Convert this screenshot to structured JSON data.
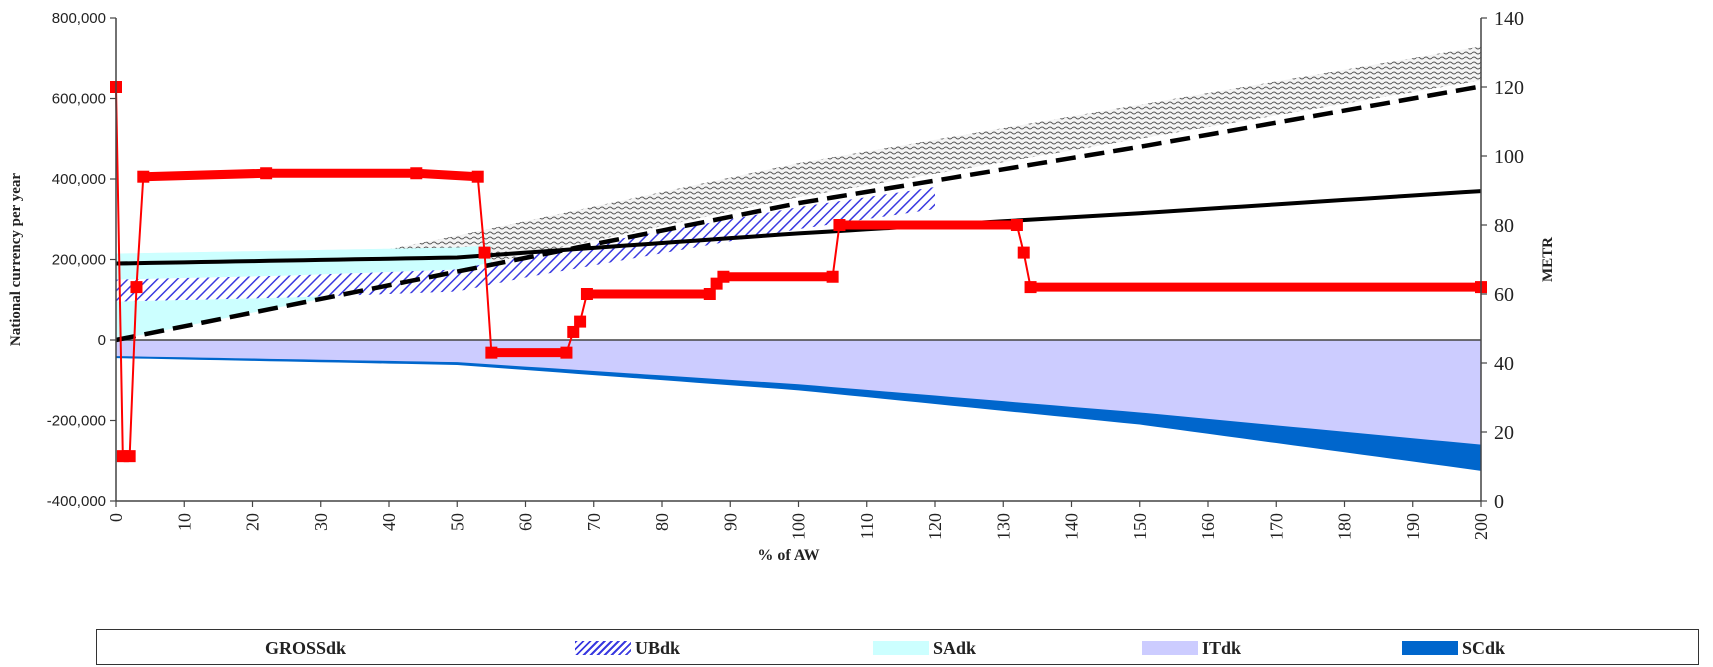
{
  "chart_data": {
    "type": "area",
    "xlabel": "% of AW",
    "ylabel": "National currency per year",
    "y2label": "METR",
    "ylim": [
      -400000,
      800000
    ],
    "y2lim": [
      0,
      140
    ],
    "xlim": [
      0,
      200
    ],
    "y_ticks": [
      -400000,
      -200000,
      0,
      200000,
      400000,
      600000,
      800000
    ],
    "y_tick_labels": [
      "-400,000",
      "-200,000",
      "0",
      "200,000",
      "400,000",
      "600,000",
      "800,000"
    ],
    "y2_ticks": [
      0,
      20,
      40,
      60,
      80,
      100,
      120,
      140
    ],
    "y2_tick_labels": [
      "0",
      "20",
      "40",
      "60",
      "80",
      "100",
      "120",
      "140"
    ],
    "x_ticks": [
      0,
      10,
      20,
      30,
      40,
      50,
      60,
      70,
      80,
      90,
      100,
      110,
      120,
      130,
      140,
      150,
      160,
      170,
      180,
      190,
      200
    ],
    "x_tick_labels": [
      "0",
      "10",
      "20",
      "30",
      "40",
      "50",
      "60",
      "70",
      "80",
      "90",
      "100",
      "110",
      "120",
      "130",
      "140",
      "150",
      "160",
      "170",
      "180",
      "190",
      "200"
    ],
    "legend_position": "bottom",
    "legend": [
      "GROSSdk",
      "UBdk",
      "SAdk",
      "ITdk",
      "SCdk"
    ],
    "series": [
      {
        "name": "GROSSdk",
        "style": "stippled band",
        "x": [
          0,
          50,
          100,
          150,
          200
        ],
        "values": [
          0,
          170000,
          350000,
          495000,
          640000
        ]
      },
      {
        "name": "UBdk",
        "style": "hatched band",
        "x": [
          0,
          25,
          50,
          60,
          80,
          100,
          120
        ],
        "values": [
          150000,
          160000,
          175000,
          210000,
          270000,
          330000,
          380000
        ]
      },
      {
        "name": "SAdk",
        "style": "cyan area",
        "x": [
          0,
          25,
          50,
          55
        ],
        "values": [
          140000,
          100000,
          20000,
          0
        ]
      },
      {
        "name": "ITdk",
        "style": "lavender area",
        "x": [
          0,
          50,
          100,
          150,
          200
        ],
        "values": [
          -40000,
          -55000,
          -110000,
          -180000,
          -260000
        ]
      },
      {
        "name": "SCdk",
        "style": "blue area",
        "x": [
          0,
          50,
          100,
          150,
          200
        ],
        "values": [
          -45000,
          -62000,
          -125000,
          -210000,
          -325000
        ]
      },
      {
        "style": "solid black line",
        "x": [
          0,
          50,
          100,
          150,
          200
        ],
        "values": [
          190000,
          205000,
          265000,
          315000,
          370000
        ]
      },
      {
        "style": "dashed black line",
        "x": [
          0,
          50,
          100,
          150,
          200
        ],
        "values": [
          0,
          170000,
          340000,
          480000,
          630000
        ]
      },
      {
        "axis": "right",
        "style": "red line with square markers",
        "x": [
          0,
          1,
          2,
          3,
          4,
          22,
          44,
          53,
          54,
          55,
          66,
          67,
          68,
          69,
          87,
          88,
          89,
          105,
          106,
          132,
          133,
          134,
          200
        ],
        "values": [
          120,
          13,
          13,
          62,
          94,
          95,
          95,
          94,
          72,
          43,
          43,
          49,
          52,
          60,
          60,
          63,
          65,
          65,
          80,
          80,
          72,
          62,
          62
        ]
      }
    ]
  },
  "colors": {
    "metr_line": "#ff0000",
    "income_line": "#000000",
    "ub_hatch": "#3a3ae0",
    "sa_fill": "#ccffff",
    "it_fill": "#ccccff",
    "sc_fill": "#0066cc",
    "gross_stipple": "#555555"
  }
}
